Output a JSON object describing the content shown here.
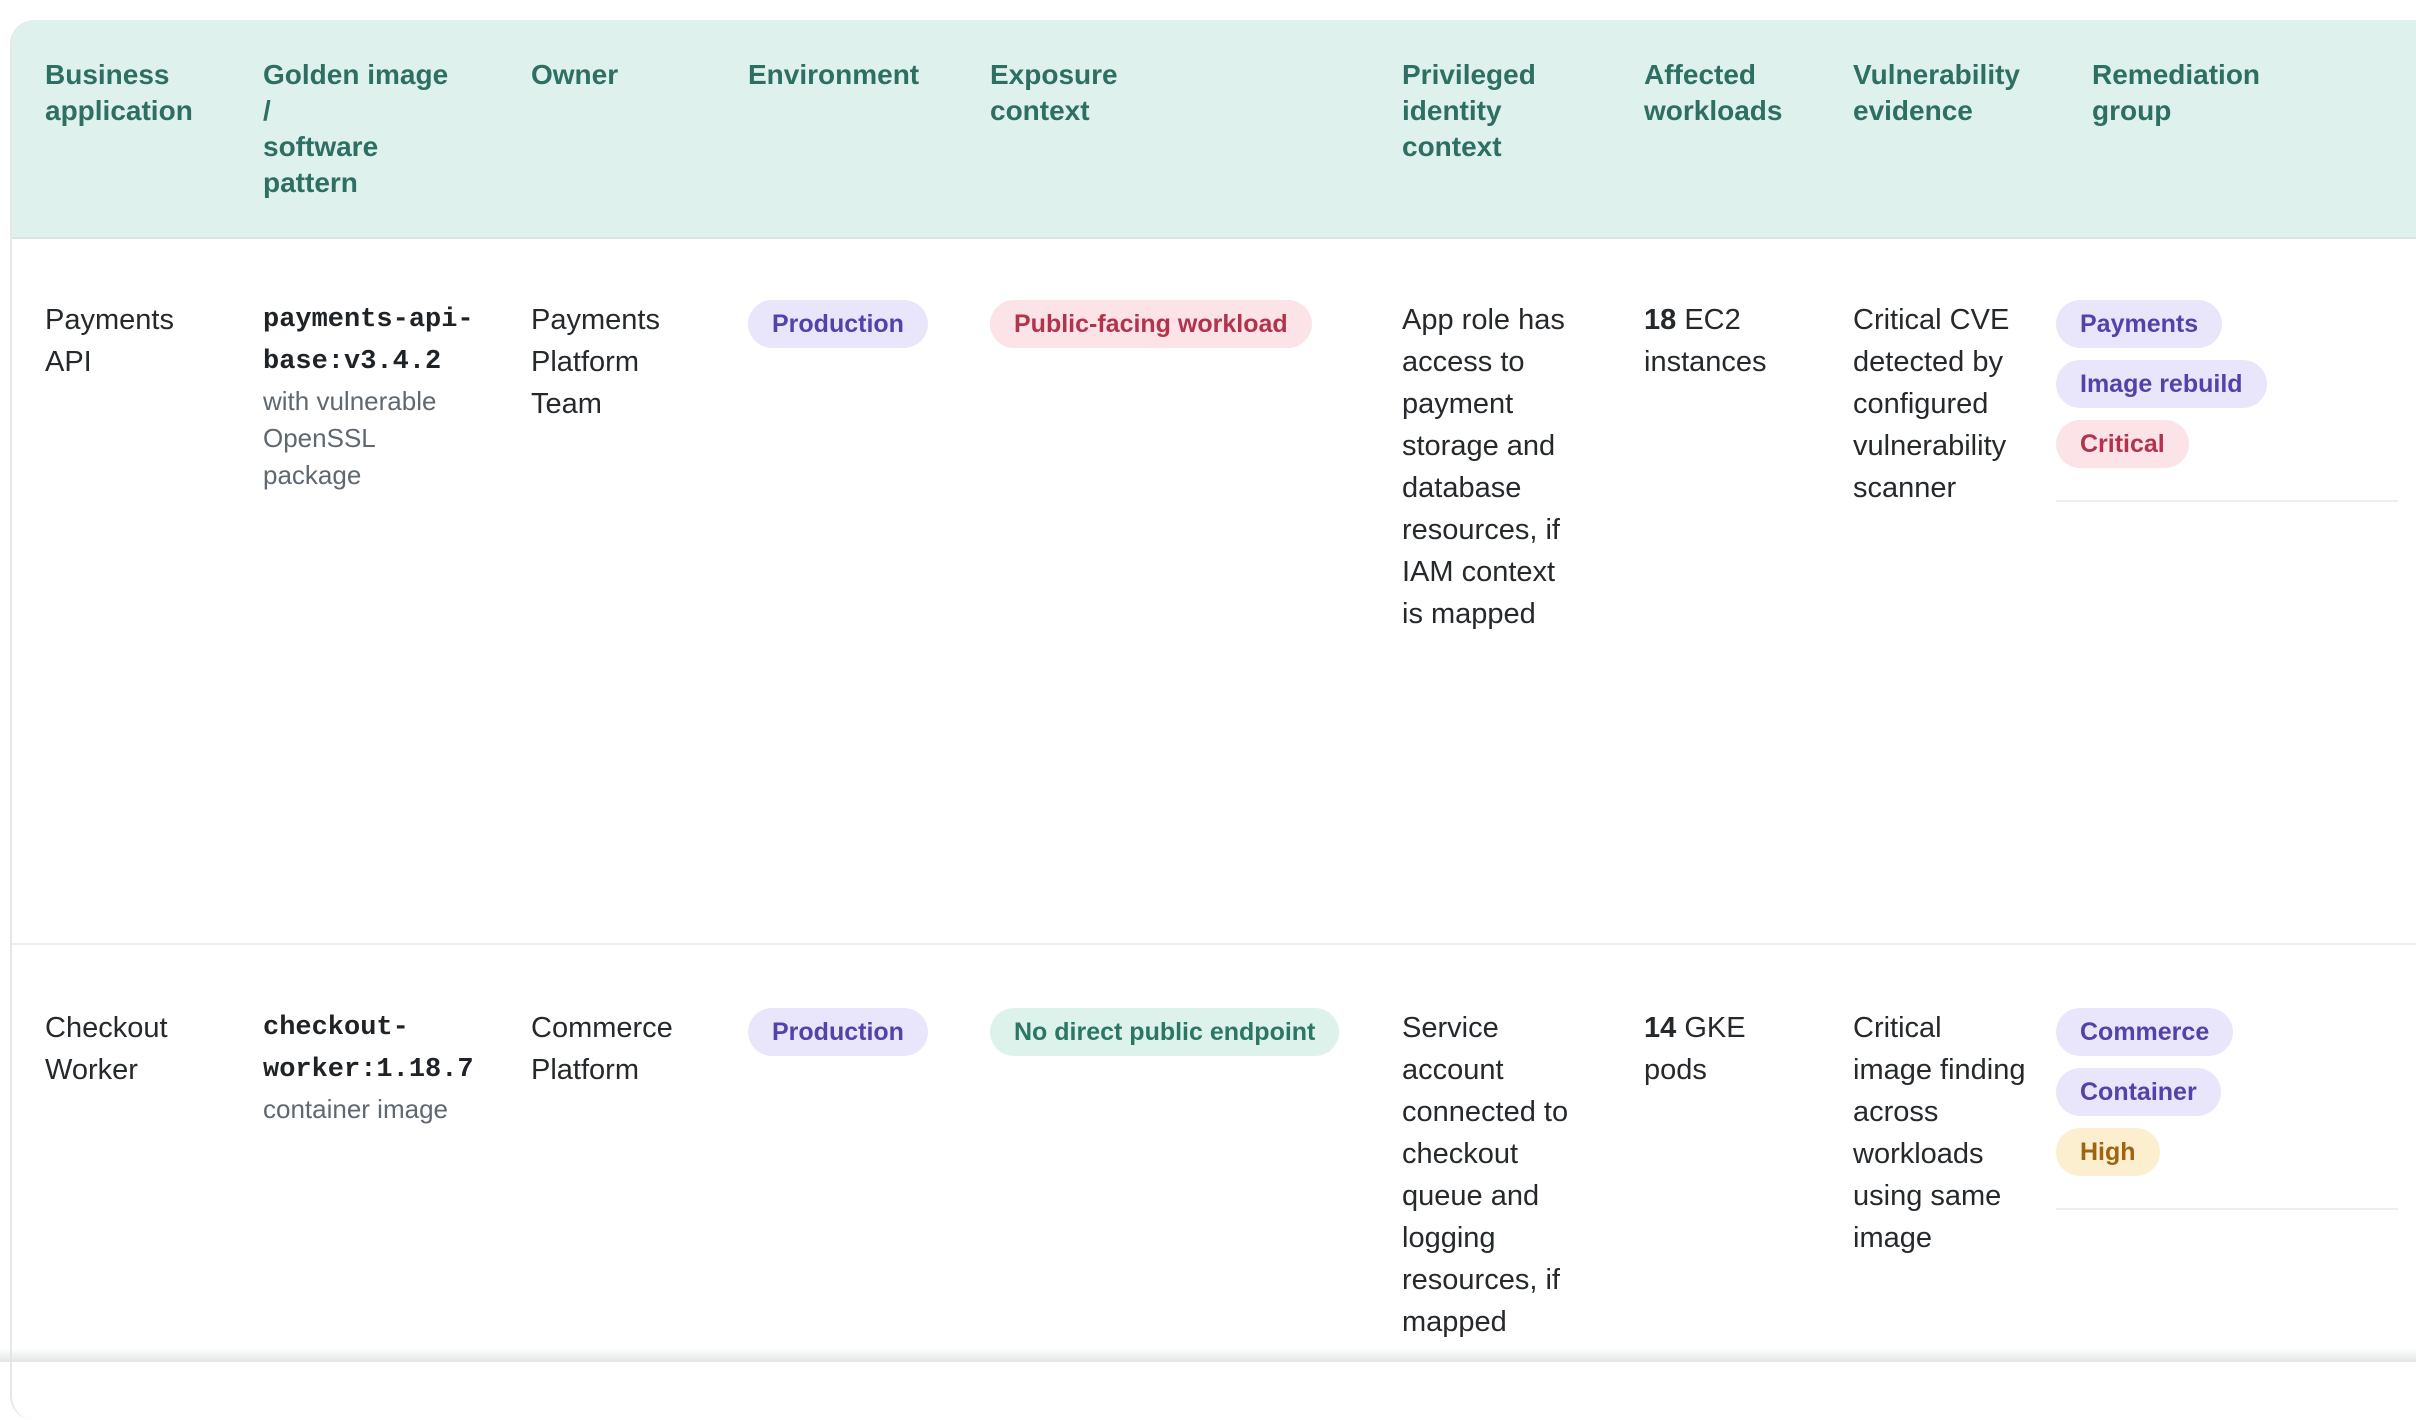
{
  "table": {
    "headers": [
      "Business\napplication",
      "Golden image\n/\nsoftware\npattern",
      "Owner",
      "Environment",
      "Exposure\ncontext",
      "Privileged\nidentity\ncontext",
      "Affected\nworkloads",
      "Vulnerability\nevidence",
      "Remediation\ngroup"
    ],
    "rows": [
      {
        "application": "Payments\nAPI",
        "image_name": "payments-api-\nbase:v3.4.2",
        "image_note": "with vulnerable\nOpenSSL\npackage",
        "owner": "Payments\nPlatform\nTeam",
        "environment": "Production",
        "exposure": "Public-facing workload",
        "identity": "App role has\naccess to\npayment\nstorage and\ndatabase\nresources, if\nIAM context\nis mapped",
        "workload_count": "18",
        "workload_unit": " EC2\ninstances",
        "evidence": "Critical CVE\ndetected by\nconfigured\nvulnerability\nscanner",
        "groups": [
          "Payments",
          "Image rebuild",
          "Critical"
        ]
      },
      {
        "application": "Checkout\nWorker",
        "image_name": "checkout-\nworker:1.18.7",
        "image_note": "container image",
        "owner": "Commerce\nPlatform",
        "environment": "Production",
        "exposure": "No direct public endpoint",
        "identity": "Service\naccount\nconnected to\ncheckout\nqueue and\nlogging\nresources, if\nmapped",
        "workload_count": "14",
        "workload_unit": " GKE\npods",
        "evidence": "Critical\nimage finding\nacross\nworkloads\nusing same\nimage",
        "groups": [
          "Commerce",
          "Container",
          "High"
        ]
      }
    ]
  },
  "colors": {
    "header_bg": "#dff1ec",
    "header_text": "#2e6f64",
    "environment_pill": "#e9e6fb",
    "public_exposure_pill": "#fbe3e7",
    "private_exposure_pill": "#dcf2eb",
    "critical_pill": "#fbe3e7",
    "high_pill": "#fbefcf"
  }
}
